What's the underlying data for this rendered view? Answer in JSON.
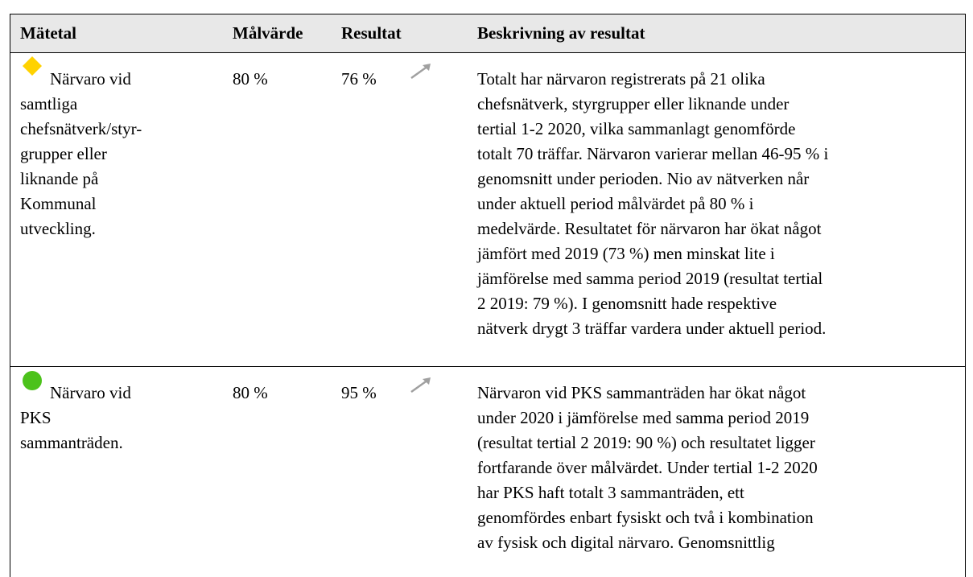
{
  "table": {
    "header": [
      "Mätetal",
      "Målvärde",
      "Resultat",
      "Beskrivning av resultat"
    ],
    "rows": [
      {
        "indicator": [
          "Närvaro vid",
          "samtliga",
          "chefsnätverk/styr-",
          "grupper eller",
          "liknande på",
          "Kommunal",
          "utveckling."
        ],
        "target": "80 %",
        "result": "76 %",
        "description": [
          "Totalt har närvaron registrerats på 21 olika",
          "chefsnätverk, styrgrupper eller liknande under",
          "tertial 1-2 2020, vilka sammanlagt genomförde",
          "totalt 70 träffar. Närvaron varierar mellan 46-95 % i",
          "genomsnitt under perioden. Nio av nätverken når",
          "under aktuell period målvärdet på 80 % i",
          "medelvärde. Resultatet för närvaron har ökat något",
          "jämfört med 2019 (73 %) men minskat lite i",
          "jämförelse med samma period 2019 (resultat tertial",
          "2 2019: 79 %). I genomsnitt hade respektive",
          "nätverk drygt 3 träffar vardera under aktuell period."
        ]
      },
      {
        "indicator": [
          "Närvaro vid",
          "PKS",
          "sammanträden."
        ],
        "target": "80 %",
        "result": "95 %",
        "description": [
          "Närvaron vid PKS sammanträden har ökat något",
          "under 2020 i jämförelse med samma period 2019",
          "(resultat tertial 2 2019: 90 %) och resultatet ligger",
          "fortfarande över målvärdet. Under tertial 1-2 2020",
          "har PKS haft totalt 3 sammanträden, ett",
          "genomfördes enbart fysiskt och två i kombination",
          "av fysisk och digital närvaro. Genomsnittlig"
        ]
      }
    ]
  }
}
